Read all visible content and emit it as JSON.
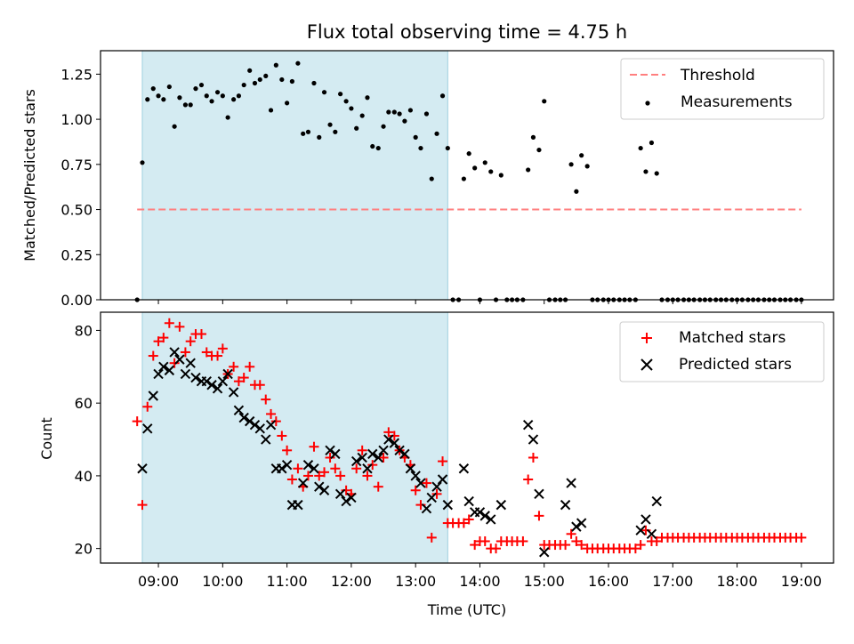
{
  "chart_data": {
    "type": "scatter",
    "title": "Flux total observing time = 4.75 h",
    "xlabel": "Time (UTC)",
    "x_ticks": [
      "09:00",
      "10:00",
      "11:00",
      "12:00",
      "13:00",
      "14:00",
      "15:00",
      "16:00",
      "17:00",
      "18:00",
      "19:00"
    ],
    "x_range_hours": [
      8.1,
      19.5
    ],
    "observing_window_hours": [
      8.75,
      13.5
    ],
    "window_color": "#add8e6",
    "top": {
      "ylabel": "Matched/Predicted stars",
      "ylim": [
        0,
        1.38
      ],
      "yticks": [
        "0.00",
        "0.25",
        "0.50",
        "0.75",
        "1.00",
        "1.25"
      ],
      "threshold": 0.5,
      "legend": [
        "Threshold",
        "Measurements"
      ],
      "threshold_color": "#ff7f7f",
      "points_color": "#000000",
      "measurements": [
        [
          8.67,
          0
        ],
        [
          8.75,
          0.76
        ],
        [
          8.83,
          1.11
        ],
        [
          8.92,
          1.17
        ],
        [
          9.0,
          1.13
        ],
        [
          9.08,
          1.11
        ],
        [
          9.17,
          1.18
        ],
        [
          9.25,
          0.96
        ],
        [
          9.33,
          1.12
        ],
        [
          9.42,
          1.08
        ],
        [
          9.5,
          1.08
        ],
        [
          9.58,
          1.17
        ],
        [
          9.67,
          1.19
        ],
        [
          9.75,
          1.13
        ],
        [
          9.83,
          1.1
        ],
        [
          9.92,
          1.15
        ],
        [
          10.0,
          1.13
        ],
        [
          10.08,
          1.01
        ],
        [
          10.17,
          1.11
        ],
        [
          10.25,
          1.13
        ],
        [
          10.33,
          1.19
        ],
        [
          10.42,
          1.27
        ],
        [
          10.5,
          1.2
        ],
        [
          10.58,
          1.22
        ],
        [
          10.67,
          1.24
        ],
        [
          10.75,
          1.05
        ],
        [
          10.83,
          1.3
        ],
        [
          10.92,
          1.22
        ],
        [
          11.0,
          1.09
        ],
        [
          11.08,
          1.21
        ],
        [
          11.17,
          1.31
        ],
        [
          11.25,
          0.92
        ],
        [
          11.33,
          0.93
        ],
        [
          11.42,
          1.2
        ],
        [
          11.5,
          0.9
        ],
        [
          11.58,
          1.15
        ],
        [
          11.67,
          0.97
        ],
        [
          11.75,
          0.93
        ],
        [
          11.83,
          1.14
        ],
        [
          11.92,
          1.1
        ],
        [
          12.0,
          1.06
        ],
        [
          12.08,
          0.95
        ],
        [
          12.17,
          1.02
        ],
        [
          12.25,
          1.12
        ],
        [
          12.33,
          0.85
        ],
        [
          12.42,
          0.84
        ],
        [
          12.5,
          0.96
        ],
        [
          12.58,
          1.04
        ],
        [
          12.67,
          1.04
        ],
        [
          12.75,
          1.03
        ],
        [
          12.83,
          0.99
        ],
        [
          12.92,
          1.05
        ],
        [
          13.0,
          0.9
        ],
        [
          13.08,
          0.84
        ],
        [
          13.17,
          1.03
        ],
        [
          13.25,
          0.67
        ],
        [
          13.33,
          0.92
        ],
        [
          13.42,
          1.13
        ],
        [
          13.5,
          0.84
        ],
        [
          13.58,
          0
        ],
        [
          13.67,
          0
        ],
        [
          13.75,
          0.67
        ],
        [
          13.83,
          0.81
        ],
        [
          13.92,
          0.73
        ],
        [
          14.0,
          0
        ],
        [
          14.08,
          0.76
        ],
        [
          14.17,
          0.71
        ],
        [
          14.25,
          0
        ],
        [
          14.33,
          0.69
        ],
        [
          14.42,
          0
        ],
        [
          14.5,
          0
        ],
        [
          14.58,
          0
        ],
        [
          14.67,
          0
        ],
        [
          14.75,
          0.72
        ],
        [
          14.83,
          0.9
        ],
        [
          14.92,
          0.83
        ],
        [
          15.0,
          1.1
        ],
        [
          15.08,
          0
        ],
        [
          15.17,
          0
        ],
        [
          15.25,
          0
        ],
        [
          15.33,
          0
        ],
        [
          15.42,
          0.75
        ],
        [
          15.5,
          0.6
        ],
        [
          15.58,
          0.8
        ],
        [
          15.67,
          0.74
        ],
        [
          15.75,
          0
        ],
        [
          15.83,
          0
        ],
        [
          15.92,
          0
        ],
        [
          16.0,
          0
        ],
        [
          16.08,
          0
        ],
        [
          16.17,
          0
        ],
        [
          16.25,
          0
        ],
        [
          16.33,
          0
        ],
        [
          16.42,
          0
        ],
        [
          16.5,
          0.84
        ],
        [
          16.58,
          0.71
        ],
        [
          16.67,
          0.87
        ],
        [
          16.75,
          0.7
        ],
        [
          16.83,
          0
        ],
        [
          16.92,
          0
        ],
        [
          17.0,
          0
        ],
        [
          17.08,
          0
        ],
        [
          17.17,
          0
        ],
        [
          17.25,
          0
        ],
        [
          17.33,
          0
        ],
        [
          17.42,
          0
        ],
        [
          17.5,
          0
        ],
        [
          17.58,
          0
        ],
        [
          17.67,
          0
        ],
        [
          17.75,
          0
        ],
        [
          17.83,
          0
        ],
        [
          17.92,
          0
        ],
        [
          18.0,
          0
        ],
        [
          18.08,
          0
        ],
        [
          18.17,
          0
        ],
        [
          18.25,
          0
        ],
        [
          18.33,
          0
        ],
        [
          18.42,
          0
        ],
        [
          18.5,
          0
        ],
        [
          18.58,
          0
        ],
        [
          18.67,
          0
        ],
        [
          18.75,
          0
        ],
        [
          18.83,
          0
        ],
        [
          18.92,
          0
        ],
        [
          19.0,
          0
        ]
      ]
    },
    "bottom": {
      "ylabel": "Count",
      "ylim": [
        16,
        85
      ],
      "yticks": [
        "20",
        "40",
        "60",
        "80"
      ],
      "legend": [
        "Matched stars",
        "Predicted stars"
      ],
      "matched_color": "#ff0000",
      "predicted_color": "#000000",
      "matched": [
        [
          8.67,
          55
        ],
        [
          8.75,
          32
        ],
        [
          8.83,
          59
        ],
        [
          8.92,
          73
        ],
        [
          9.0,
          77
        ],
        [
          9.08,
          78
        ],
        [
          9.17,
          82
        ],
        [
          9.25,
          71
        ],
        [
          9.33,
          81
        ],
        [
          9.42,
          74
        ],
        [
          9.5,
          77
        ],
        [
          9.58,
          79
        ],
        [
          9.67,
          79
        ],
        [
          9.75,
          74
        ],
        [
          9.83,
          73
        ],
        [
          9.92,
          73
        ],
        [
          10.0,
          75
        ],
        [
          10.08,
          68
        ],
        [
          10.17,
          70
        ],
        [
          10.25,
          66
        ],
        [
          10.33,
          67
        ],
        [
          10.42,
          70
        ],
        [
          10.5,
          65
        ],
        [
          10.58,
          65
        ],
        [
          10.67,
          61
        ],
        [
          10.75,
          57
        ],
        [
          10.83,
          55
        ],
        [
          10.92,
          51
        ],
        [
          11.0,
          47
        ],
        [
          11.08,
          39
        ],
        [
          11.17,
          42
        ],
        [
          11.25,
          37
        ],
        [
          11.33,
          40
        ],
        [
          11.42,
          48
        ],
        [
          11.5,
          40
        ],
        [
          11.58,
          41
        ],
        [
          11.67,
          45
        ],
        [
          11.75,
          42
        ],
        [
          11.83,
          40
        ],
        [
          11.92,
          36
        ],
        [
          12.0,
          35
        ],
        [
          12.08,
          42
        ],
        [
          12.17,
          47
        ],
        [
          12.25,
          40
        ],
        [
          12.33,
          43
        ],
        [
          12.42,
          37
        ],
        [
          12.5,
          45
        ],
        [
          12.58,
          52
        ],
        [
          12.67,
          51
        ],
        [
          12.75,
          47
        ],
        [
          12.83,
          45
        ],
        [
          12.92,
          43
        ],
        [
          13.0,
          36
        ],
        [
          13.08,
          32
        ],
        [
          13.17,
          38
        ],
        [
          13.25,
          23
        ],
        [
          13.33,
          35
        ],
        [
          13.42,
          44
        ],
        [
          13.5,
          27
        ],
        [
          13.58,
          27
        ],
        [
          13.67,
          27
        ],
        [
          13.75,
          27
        ],
        [
          13.83,
          28
        ],
        [
          13.92,
          21
        ],
        [
          14.0,
          22
        ],
        [
          14.08,
          22
        ],
        [
          14.17,
          20
        ],
        [
          14.25,
          20
        ],
        [
          14.33,
          22
        ],
        [
          14.42,
          22
        ],
        [
          14.5,
          22
        ],
        [
          14.58,
          22
        ],
        [
          14.67,
          22
        ],
        [
          14.75,
          39
        ],
        [
          14.83,
          45
        ],
        [
          14.92,
          29
        ],
        [
          15.0,
          21
        ],
        [
          15.08,
          21
        ],
        [
          15.17,
          21
        ],
        [
          15.25,
          21
        ],
        [
          15.33,
          21
        ],
        [
          15.42,
          24
        ],
        [
          15.5,
          22
        ],
        [
          15.58,
          21
        ],
        [
          15.67,
          20
        ],
        [
          15.75,
          20
        ],
        [
          15.83,
          20
        ],
        [
          15.92,
          20
        ],
        [
          16.0,
          20
        ],
        [
          16.08,
          20
        ],
        [
          16.17,
          20
        ],
        [
          16.25,
          20
        ],
        [
          16.33,
          20
        ],
        [
          16.42,
          20
        ],
        [
          16.5,
          21
        ],
        [
          16.58,
          25
        ],
        [
          16.67,
          22
        ],
        [
          16.75,
          22
        ],
        [
          16.83,
          23
        ],
        [
          16.92,
          23
        ],
        [
          17.0,
          23
        ],
        [
          17.08,
          23
        ],
        [
          17.17,
          23
        ],
        [
          17.25,
          23
        ],
        [
          17.33,
          23
        ],
        [
          17.42,
          23
        ],
        [
          17.5,
          23
        ],
        [
          17.58,
          23
        ],
        [
          17.67,
          23
        ],
        [
          17.75,
          23
        ],
        [
          17.83,
          23
        ],
        [
          17.92,
          23
        ],
        [
          18.0,
          23
        ],
        [
          18.08,
          23
        ],
        [
          18.17,
          23
        ],
        [
          18.25,
          23
        ],
        [
          18.33,
          23
        ],
        [
          18.42,
          23
        ],
        [
          18.5,
          23
        ],
        [
          18.58,
          23
        ],
        [
          18.67,
          23
        ],
        [
          18.75,
          23
        ],
        [
          18.83,
          23
        ],
        [
          18.92,
          23
        ],
        [
          19.0,
          23
        ]
      ],
      "predicted": [
        [
          8.75,
          42
        ],
        [
          8.83,
          53
        ],
        [
          8.92,
          62
        ],
        [
          9.0,
          68
        ],
        [
          9.08,
          70
        ],
        [
          9.17,
          69
        ],
        [
          9.25,
          74
        ],
        [
          9.33,
          72
        ],
        [
          9.42,
          68
        ],
        [
          9.5,
          71
        ],
        [
          9.58,
          67
        ],
        [
          9.67,
          66
        ],
        [
          9.75,
          66
        ],
        [
          9.83,
          65
        ],
        [
          9.92,
          64
        ],
        [
          10.0,
          66
        ],
        [
          10.08,
          68
        ],
        [
          10.17,
          63
        ],
        [
          10.25,
          58
        ],
        [
          10.33,
          56
        ],
        [
          10.42,
          55
        ],
        [
          10.5,
          54
        ],
        [
          10.58,
          53
        ],
        [
          10.67,
          50
        ],
        [
          10.75,
          54
        ],
        [
          10.83,
          42
        ],
        [
          10.92,
          42
        ],
        [
          11.0,
          43
        ],
        [
          11.08,
          32
        ],
        [
          11.17,
          32
        ],
        [
          11.25,
          38
        ],
        [
          11.33,
          43
        ],
        [
          11.42,
          42
        ],
        [
          11.5,
          37
        ],
        [
          11.58,
          36
        ],
        [
          11.67,
          47
        ],
        [
          11.75,
          46
        ],
        [
          11.83,
          35
        ],
        [
          11.92,
          33
        ],
        [
          12.0,
          34
        ],
        [
          12.08,
          44
        ],
        [
          12.17,
          45
        ],
        [
          12.25,
          42
        ],
        [
          12.33,
          46
        ],
        [
          12.42,
          45
        ],
        [
          12.5,
          47
        ],
        [
          12.58,
          50
        ],
        [
          12.67,
          49
        ],
        [
          12.75,
          47
        ],
        [
          12.83,
          46
        ],
        [
          12.92,
          42
        ],
        [
          13.0,
          40
        ],
        [
          13.08,
          38
        ],
        [
          13.17,
          31
        ],
        [
          13.25,
          34
        ],
        [
          13.33,
          37
        ],
        [
          13.42,
          39
        ],
        [
          13.5,
          32
        ],
        [
          13.75,
          42
        ],
        [
          13.83,
          33
        ],
        [
          13.92,
          30
        ],
        [
          14.0,
          30
        ],
        [
          14.08,
          29
        ],
        [
          14.17,
          28
        ],
        [
          14.33,
          32
        ],
        [
          14.75,
          54
        ],
        [
          14.83,
          50
        ],
        [
          14.92,
          35
        ],
        [
          15.0,
          19
        ],
        [
          15.33,
          32
        ],
        [
          15.42,
          38
        ],
        [
          15.5,
          26
        ],
        [
          15.58,
          27
        ],
        [
          16.5,
          25
        ],
        [
          16.58,
          28
        ],
        [
          16.67,
          24
        ],
        [
          16.75,
          33
        ]
      ]
    }
  }
}
